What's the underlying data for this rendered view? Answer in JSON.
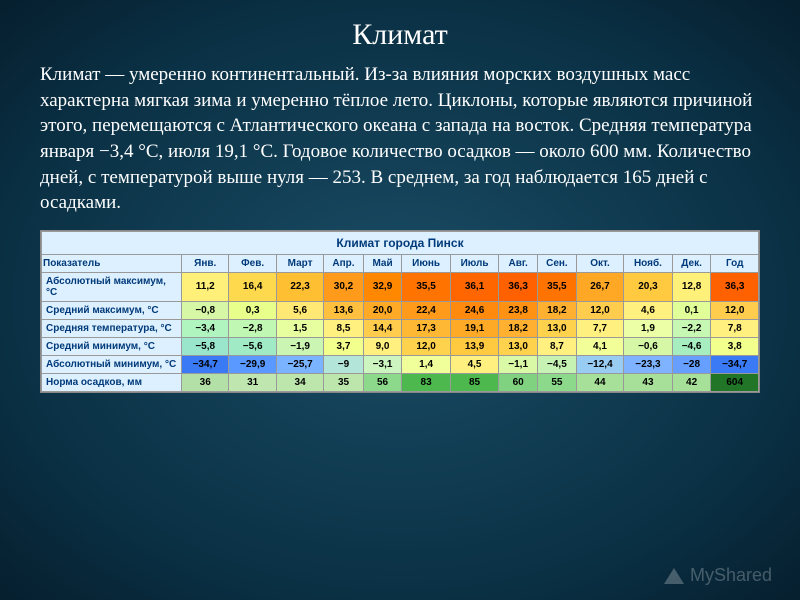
{
  "title": "Климат",
  "paragraph": "Климат — умеренно континентальный. Из-за влияния морских воздушных масс характерна мягкая зима и умеренно тёплое лето. Циклоны, которые являются причиной этого, перемещаются с Атлантического океана с запада на восток. Средняя температура января −3,4 °C, июля 19,1 °C. Годовое количество осадков — около 600 мм. Количество дней, с температурой выше нуля — 253. В среднем, за год наблюдается 165 дней с осадками.",
  "table": {
    "caption": "Климат города Пинск",
    "label_header": "Показатель",
    "months": [
      "Янв.",
      "Фев.",
      "Март",
      "Апр.",
      "Май",
      "Июнь",
      "Июль",
      "Авг.",
      "Сен.",
      "Окт.",
      "Нояб.",
      "Дек.",
      "Год"
    ],
    "header_bg": "#ddf0ff",
    "header_color": "#003a7a",
    "rows": [
      {
        "label": "Абсолютный максимум, °C",
        "values": [
          "11,2",
          "16,4",
          "22,3",
          "30,2",
          "32,9",
          "35,5",
          "36,1",
          "36,3",
          "35,5",
          "26,7",
          "20,3",
          "12,8",
          "36,3"
        ],
        "colors": [
          "#fff07a",
          "#ffd94d",
          "#ffbf33",
          "#ff9a1a",
          "#ff8800",
          "#ff7300",
          "#ff6600",
          "#ff6000",
          "#ff7300",
          "#ffa826",
          "#ffc940",
          "#fff07a",
          "#ff6000"
        ]
      },
      {
        "label": "Средний максимум, °C",
        "values": [
          "−0,8",
          "0,3",
          "5,6",
          "13,6",
          "20,0",
          "22,4",
          "24,6",
          "23,8",
          "18,2",
          "12,0",
          "4,6",
          "0,1",
          "12,0"
        ],
        "colors": [
          "#d6f7a6",
          "#e8ff8c",
          "#ffe873",
          "#ffc040",
          "#ffaa26",
          "#ff9a1a",
          "#ff8a0d",
          "#ff9213",
          "#ffb030",
          "#ffcc4d",
          "#fff080",
          "#e0ff99",
          "#ffcc4d"
        ]
      },
      {
        "label": "Средняя температура, °C",
        "values": [
          "−3,4",
          "−2,8",
          "1,5",
          "8,5",
          "14,4",
          "17,3",
          "19,1",
          "18,2",
          "13,0",
          "7,7",
          "1,9",
          "−2,2",
          "7,8"
        ],
        "colors": [
          "#b0f5c0",
          "#c0f7b3",
          "#e8ffa0",
          "#fff080",
          "#ffcc4d",
          "#ffb833",
          "#ffaa26",
          "#ffb030",
          "#ffd24d",
          "#fff080",
          "#ecffa6",
          "#c6f7b3",
          "#fff080"
        ]
      },
      {
        "label": "Средний минимум, °C",
        "values": [
          "−5,8",
          "−5,6",
          "−1,9",
          "3,7",
          "9,0",
          "12,0",
          "13,9",
          "13,0",
          "8,7",
          "4,1",
          "−0,6",
          "−4,6",
          "3,8"
        ],
        "colors": [
          "#9ae6cc",
          "#a0ebc6",
          "#caf5b3",
          "#f2ff8c",
          "#fff080",
          "#ffd24d",
          "#ffc940",
          "#ffd24d",
          "#fff080",
          "#f2ff99",
          "#d6f7a6",
          "#a6edc0",
          "#f2ff8c"
        ]
      },
      {
        "label": "Абсолютный минимум, °C",
        "values": [
          "−34,7",
          "−29,9",
          "−25,7",
          "−9",
          "−3,1",
          "1,4",
          "4,5",
          "−1,1",
          "−4,5",
          "−12,4",
          "−23,3",
          "−28",
          "−34,7"
        ],
        "colors": [
          "#3a7af5",
          "#5a99ff",
          "#7ab3ff",
          "#b3e6d9",
          "#ccf5bf",
          "#f0ff99",
          "#fff080",
          "#d9f9a6",
          "#c6f2b3",
          "#99ccf2",
          "#80b3ff",
          "#669fff",
          "#3a7af5"
        ]
      },
      {
        "label": "Норма осадков, мм",
        "values": [
          "36",
          "31",
          "34",
          "35",
          "56",
          "83",
          "85",
          "60",
          "55",
          "44",
          "43",
          "42",
          "604"
        ],
        "colors": [
          "#b3e0a6",
          "#c0e6b0",
          "#bde6ad",
          "#bde6ad",
          "#8cd98c",
          "#4db84d",
          "#4db84d",
          "#80d180",
          "#8cd98c",
          "#a6e099",
          "#a6e099",
          "#a6e099",
          "#207526"
        ]
      }
    ]
  },
  "watermark": "MyShared"
}
